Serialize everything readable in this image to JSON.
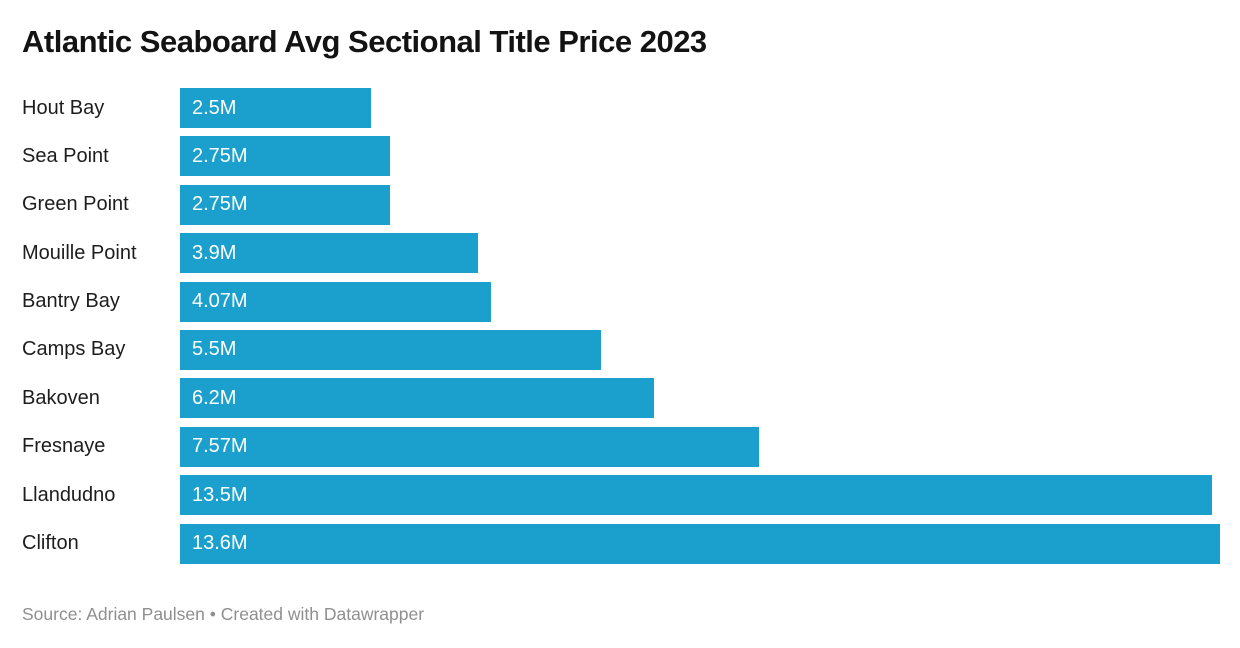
{
  "title": "Atlantic Seaboard Avg Sectional Title Price 2023",
  "footer": {
    "text": "Source: Adrian Paulsen • Created with Datawrapper"
  },
  "colors": {
    "bar": "#1ba0ce",
    "title_text": "#131313",
    "category_text": "#1d1d1d",
    "value_text": "#ffffff",
    "footer_text": "#8f8f8f",
    "background": "#ffffff"
  },
  "chart_data": {
    "type": "bar",
    "orientation": "horizontal",
    "title": "Atlantic Seaboard Avg Sectional Title Price 2023",
    "xlabel": "",
    "ylabel": "",
    "unit": "M",
    "xlim": [
      0,
      13.6
    ],
    "grid": false,
    "legend": false,
    "value_labels_position": "inside-start",
    "categories": [
      "Hout Bay",
      "Sea Point",
      "Green Point",
      "Mouille Point",
      "Bantry Bay",
      "Camps Bay",
      "Bakoven",
      "Fresnaye",
      "Llandudno",
      "Clifton"
    ],
    "values": [
      2.5,
      2.75,
      2.75,
      3.9,
      4.07,
      5.5,
      6.2,
      7.57,
      13.5,
      13.6
    ],
    "value_labels": [
      "2.5M",
      "2.75M",
      "2.75M",
      "3.9M",
      "4.07M",
      "5.5M",
      "6.2M",
      "7.57M",
      "13.5M",
      "13.6M"
    ],
    "source": "Adrian Paulsen",
    "attribution": "Created with Datawrapper"
  }
}
